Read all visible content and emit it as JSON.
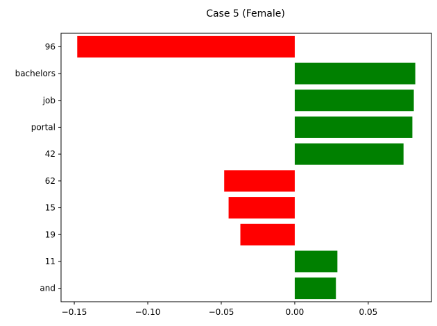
{
  "chart_data": {
    "type": "bar",
    "orientation": "horizontal",
    "title": "Case 5 (Female)",
    "xlabel": "",
    "ylabel": "",
    "xlim": [
      -0.159,
      0.093
    ],
    "categories": [
      "96",
      "bachelors",
      "job",
      "portal",
      "42",
      "62",
      "15",
      "19",
      "11",
      "and"
    ],
    "values": [
      -0.148,
      0.082,
      0.081,
      0.08,
      0.074,
      -0.048,
      -0.045,
      -0.037,
      0.029,
      0.028
    ],
    "x_ticks": [
      -0.15,
      -0.1,
      -0.05,
      0.0,
      0.05
    ],
    "x_tick_labels": [
      "−0.15",
      "−0.10",
      "−0.05",
      "0.00",
      "0.05"
    ],
    "colors": {
      "positive": "#008000",
      "negative": "#ff0000"
    },
    "grid": false,
    "legend": "none"
  }
}
